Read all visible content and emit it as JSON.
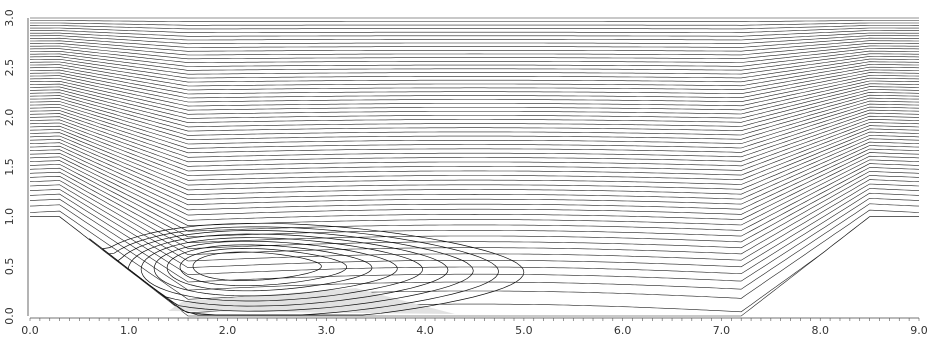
{
  "chart_data": {
    "type": "line",
    "title": "",
    "xlabel": "",
    "ylabel": "",
    "xlim": [
      0.0,
      9.0
    ],
    "ylim": [
      0.0,
      3.0
    ],
    "x_ticks": [
      "0.0",
      "1.0",
      "2.0",
      "3.0",
      "4.0",
      "5.0",
      "6.0",
      "7.0",
      "8.0",
      "9.0"
    ],
    "y_ticks": [
      "0.0",
      "0.5",
      "1.0",
      "1.5",
      "2.0",
      "2.5",
      "3.0"
    ],
    "grid": false,
    "legend": "none",
    "wall": {
      "x": [
        0.0,
        0.3,
        1.6,
        4.5,
        7.2,
        8.5,
        9.0
      ],
      "y": [
        1.0,
        1.0,
        0.0,
        0.0,
        0.0,
        1.0,
        1.0
      ]
    },
    "streamline_levels": {
      "count": 62,
      "y_min": 1.0,
      "y_max": 3.0
    },
    "recirculation": {
      "center": [
        2.2,
        0.5
      ],
      "ring_count": 9,
      "shaded_core": true
    },
    "colors": {
      "line": "#222222",
      "shade": "#e2e2e2",
      "background": "#ffffff"
    }
  }
}
